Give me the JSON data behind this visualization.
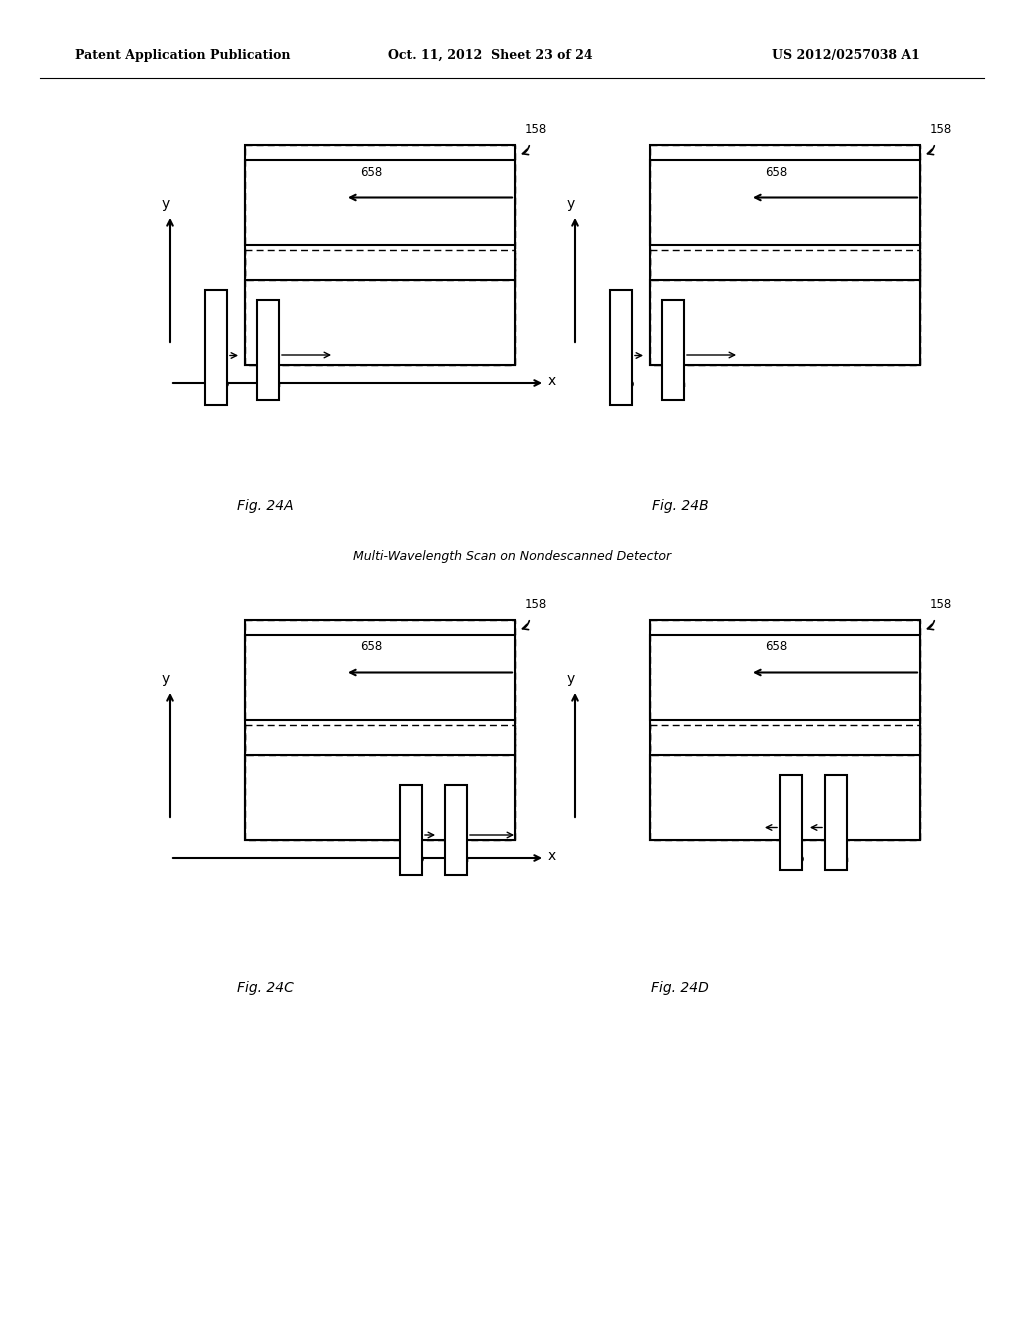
{
  "title_left": "Patent Application Publication",
  "title_center": "Oct. 11, 2012  Sheet 23 of 24",
  "title_right": "US 2012/0257038 A1",
  "caption_center": "Multi-Wavelength Scan on Nondescanned Detector",
  "fig_labels": [
    "Fig. 24A",
    "Fig. 24B",
    "Fig. 24C",
    "Fig. 24D"
  ],
  "background": "#ffffff",
  "line_color": "#000000"
}
